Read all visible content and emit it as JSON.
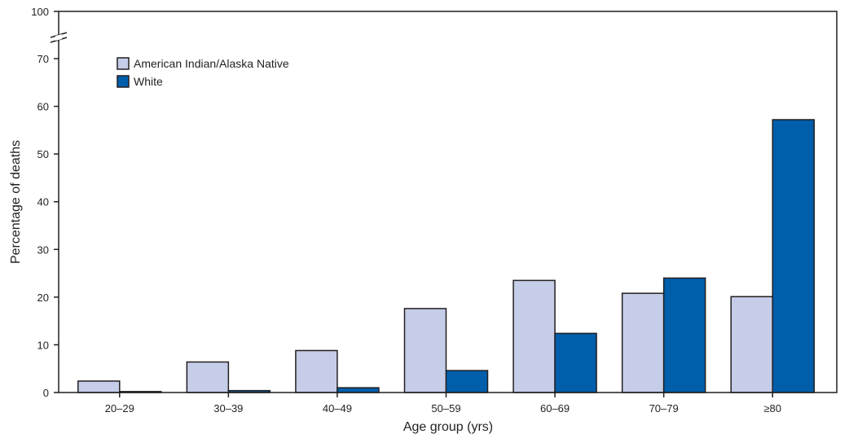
{
  "chart_data": {
    "type": "bar",
    "title": "",
    "xlabel": "Age group (yrs)",
    "ylabel": "Percentage of deaths",
    "categories": [
      "20–29",
      "30–39",
      "40–49",
      "50–59",
      "60–69",
      "70–79",
      "≥80"
    ],
    "series": [
      {
        "name": "American Indian/Alaska Native",
        "color": "#c5cde8",
        "values": [
          2.4,
          6.4,
          8.8,
          17.6,
          23.5,
          20.8,
          20.1
        ]
      },
      {
        "name": "White",
        "color": "#005eaa",
        "values": [
          0.2,
          0.4,
          1.0,
          4.6,
          12.4,
          24.0,
          57.2
        ]
      }
    ],
    "ylim": [
      0,
      100
    ],
    "axis_break": {
      "from": 70,
      "to": 100
    },
    "yticks": [
      0,
      10,
      20,
      30,
      40,
      50,
      60,
      70,
      100
    ],
    "grid": false,
    "legend_position": "top-left"
  }
}
